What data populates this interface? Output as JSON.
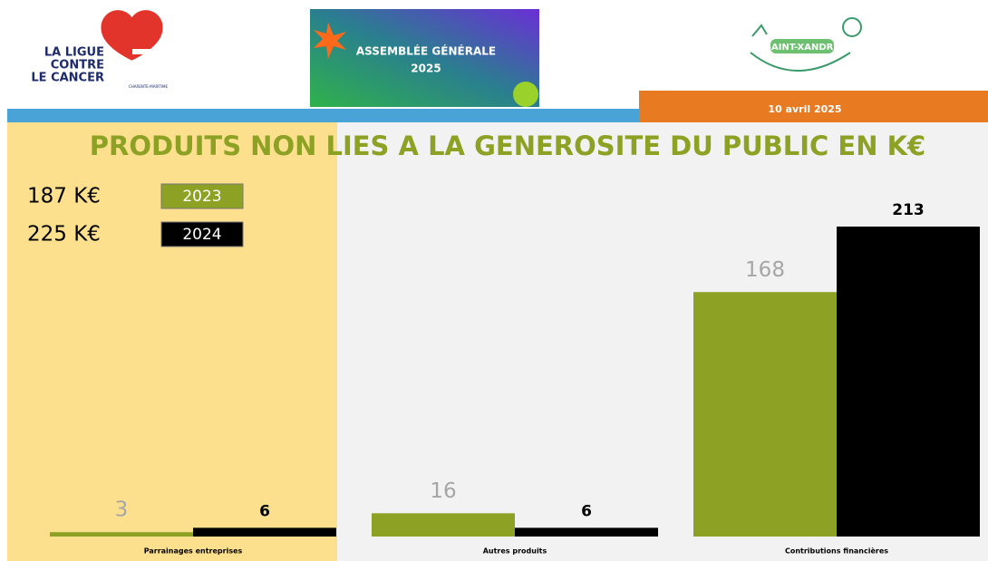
{
  "header": {
    "logo_left": [
      "LA LIGUE",
      "CONTRE",
      "LE CANCER"
    ],
    "logo_left_sub": "CHARENTE-MARITIME",
    "banner": [
      "ASSEMBLÉE GÉNÉRALE",
      "2025"
    ],
    "logo_right": "SAINT-XANDRE",
    "date": "10 avril 2025"
  },
  "chart_data": {
    "type": "bar",
    "title": "PRODUITS NON LIES A LA GENEROSITE DU PUBLIC EN K€",
    "categories": [
      "Parrainages entreprises",
      "Autres produits",
      "Contributions financières"
    ],
    "series": [
      {
        "name": "2023",
        "color": "#8da224",
        "values": [
          3,
          16,
          168
        ],
        "total": "187 K€"
      },
      {
        "name": "2024",
        "color": "#000000",
        "values": [
          6,
          6,
          213
        ],
        "total": "225 K€"
      }
    ]
  }
}
